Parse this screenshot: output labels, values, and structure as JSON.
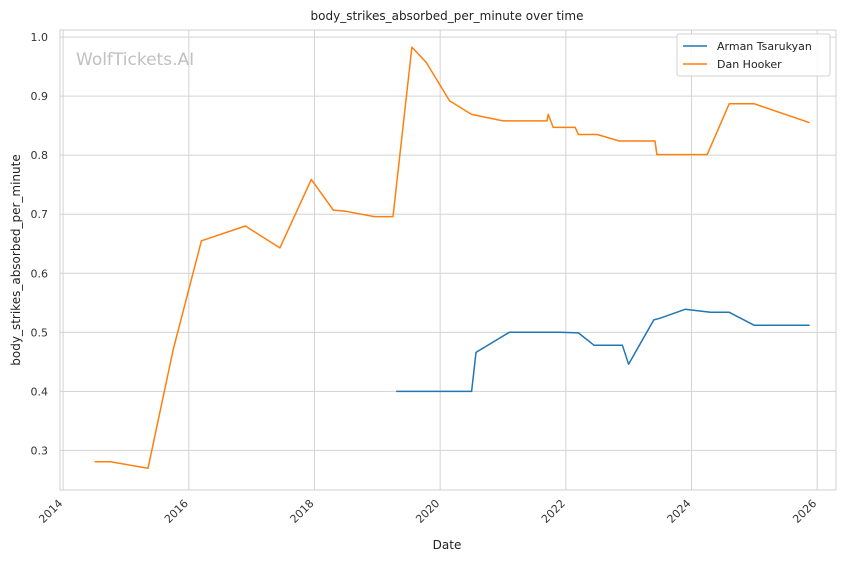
{
  "chart_data": {
    "type": "line",
    "title": "body_strikes_absorbed_per_minute over time",
    "xlabel": "Date",
    "ylabel": "body_strikes_absorbed_per_minute",
    "watermark": "WolfTickets.AI",
    "xlim": [
      2013.95,
      2026.3
    ],
    "ylim": [
      0.233,
      1.012
    ],
    "xticks": [
      2014,
      2016,
      2018,
      2020,
      2022,
      2024,
      2026
    ],
    "xtick_labels": [
      "2014",
      "2016",
      "2018",
      "2020",
      "2022",
      "2024",
      "2026"
    ],
    "yticks": [
      0.3,
      0.4,
      0.5,
      0.6,
      0.7,
      0.8,
      0.9,
      1.0
    ],
    "ytick_labels": [
      "0.3",
      "0.4",
      "0.5",
      "0.6",
      "0.7",
      "0.8",
      "0.9",
      "1.0"
    ],
    "grid": true,
    "legend_position": "top-right",
    "series": [
      {
        "name": "Arman Tsarukyan",
        "color": "#1f77b4",
        "x": [
          2019.3,
          2020.0,
          2020.5,
          2020.57,
          2021.1,
          2021.9,
          2022.2,
          2022.45,
          2022.9,
          2023.0,
          2023.4,
          2023.5,
          2023.9,
          2024.3,
          2024.6,
          2025.0,
          2025.5,
          2025.88
        ],
        "y": [
          0.4,
          0.4,
          0.4,
          0.466,
          0.5,
          0.5,
          0.499,
          0.478,
          0.478,
          0.446,
          0.521,
          0.524,
          0.539,
          0.534,
          0.534,
          0.512,
          0.512,
          0.512
        ]
      },
      {
        "name": "Dan Hooker",
        "color": "#ff7f0e",
        "x": [
          2014.5,
          2014.75,
          2015.35,
          2015.75,
          2016.2,
          2016.9,
          2017.45,
          2017.95,
          2018.3,
          2018.5,
          2018.95,
          2019.25,
          2019.55,
          2019.78,
          2020.15,
          2020.5,
          2021.0,
          2021.7,
          2021.72,
          2021.8,
          2022.15,
          2022.2,
          2022.5,
          2022.85,
          2023.42,
          2023.45,
          2023.8,
          2024.25,
          2024.6,
          2025.0,
          2025.88
        ],
        "y": [
          0.281,
          0.281,
          0.27,
          0.47,
          0.655,
          0.68,
          0.643,
          0.759,
          0.707,
          0.705,
          0.696,
          0.696,
          0.983,
          0.957,
          0.892,
          0.869,
          0.858,
          0.858,
          0.869,
          0.847,
          0.847,
          0.835,
          0.835,
          0.824,
          0.824,
          0.801,
          0.801,
          0.801,
          0.887,
          0.887,
          0.855
        ]
      }
    ]
  }
}
